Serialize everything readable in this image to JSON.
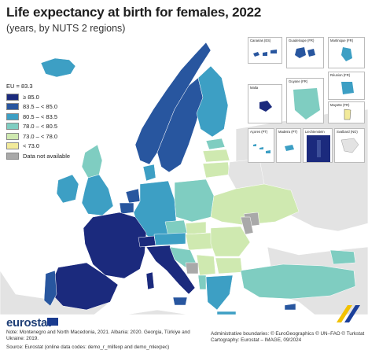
{
  "title": "Life expectancy at birth for females, 2022",
  "subtitle": "(years, by NUTS 2 regions)",
  "legend": {
    "header": "EU = 83.3",
    "items": [
      {
        "label": "≥ 85.0",
        "color": "#1b2a7d"
      },
      {
        "label": "83.5 – < 85.0",
        "color": "#28569f"
      },
      {
        "label": "80.5 – < 83.5",
        "color": "#3d9fc4"
      },
      {
        "label": "78.0 – < 80.5",
        "color": "#7fcdc1"
      },
      {
        "label": "73.0 – < 78.0",
        "color": "#cfe9b0"
      },
      {
        "label": "< 73.0",
        "color": "#f2ea9a"
      },
      {
        "label": "Data not available",
        "color": "#a9a9a9"
      }
    ]
  },
  "insets": {
    "canarias": "Canarias (ES)",
    "guadeloupe": "Guadeloupe (FR)",
    "martinique": "Martinique (FR)",
    "guyane": "Guyane (FR)",
    "reunion": "Réunion (FR)",
    "malta": "Malta",
    "mayotte": "Mayotte (FR)",
    "acores": "Açores (PT)",
    "madeira": "Madeira (PT)",
    "liechtenstein": "Liechtenstein",
    "svalbard": "Svalbard (NO)"
  },
  "colors": {
    "background_land": "#e3e3e3",
    "sea": "#ffffff",
    "border": "#ffffff"
  },
  "brand": "eurostat",
  "note": "Note: Montenegro and North Macedonia, 2021. Albania: 2020. Georgia, Türkiye and Ukraine: 2019.",
  "source": "Source: Eurostat (online data codes: demo_r_mlifexp and demo_mlexpec)",
  "admin_boundaries": "Administrative boundaries: © EuroGeographics © UN–FAO © Turkstat",
  "cartography": "Cartography: Eurostat – IMAGE, 09/2024"
}
